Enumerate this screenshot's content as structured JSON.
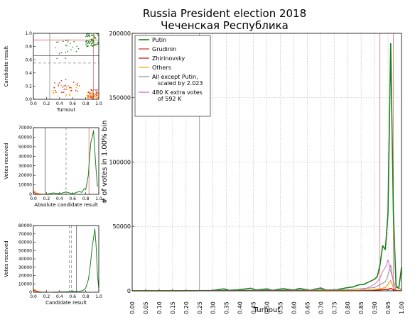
{
  "title": "Russia President election 2018",
  "subtitle": "Чеченская Республика",
  "colors": {
    "putin": "#1a7f1a",
    "grudinin": "#cc2222",
    "zhirinovsky": "#bb1111",
    "others": "#ff9900",
    "all_except": "#888888",
    "extra": "#cc66cc"
  },
  "chart_data": [
    {
      "id": "main",
      "type": "line",
      "xlabel": "Turnout",
      "ylabel": "# of votes in 1.00% bin",
      "xlim": [
        0,
        1
      ],
      "ylim": [
        0,
        200000
      ],
      "x_ticks": [
        "0.00",
        "0.05",
        "0.10",
        "0.15",
        "0.20",
        "0.25",
        "0.30",
        "0.35",
        "0.40",
        "0.45",
        "0.50",
        "0.55",
        "0.60",
        "0.65",
        "0.70",
        "0.75",
        "0.80",
        "0.85",
        "0.90",
        "0.95",
        "1.00"
      ],
      "y_ticks": [
        {
          "v": 0,
          "label": "0"
        },
        {
          "v": 50000,
          "label": "50000"
        },
        {
          "v": 100000,
          "label": "100000"
        },
        {
          "v": 150000,
          "label": "150000"
        },
        {
          "v": 200000,
          "label": "200000"
        }
      ],
      "vlines": [
        {
          "x": 0.25,
          "color": "#888888"
        },
        {
          "x": 0.92,
          "color": "#ee6666"
        },
        {
          "x": 0.97,
          "color": "#ee6666"
        }
      ],
      "grid": true,
      "legend": "top-left",
      "series": [
        {
          "name": "Putin",
          "color": "#1a7f1a",
          "width": 1.6,
          "x": [
            0.0,
            0.1,
            0.2,
            0.3,
            0.34,
            0.36,
            0.4,
            0.44,
            0.46,
            0.5,
            0.52,
            0.56,
            0.6,
            0.62,
            0.66,
            0.7,
            0.72,
            0.76,
            0.8,
            0.82,
            0.84,
            0.86,
            0.88,
            0.9,
            0.91,
            0.92,
            0.93,
            0.94,
            0.95,
            0.96,
            0.97,
            0.98,
            0.99,
            1.0
          ],
          "values": [
            0,
            0,
            0,
            300,
            1500,
            400,
            900,
            2000,
            600,
            1500,
            400,
            1600,
            500,
            1800,
            400,
            2200,
            600,
            900,
            2500,
            3000,
            4500,
            5000,
            7000,
            9000,
            11000,
            20000,
            35000,
            32000,
            60000,
            192000,
            60000,
            3000,
            2000,
            18000
          ]
        },
        {
          "name": "Grudinin",
          "color": "#cc2222",
          "width": 1,
          "x": [
            0.0,
            0.2,
            0.4,
            0.8,
            0.9,
            0.95,
            0.96,
            0.97,
            1.0
          ],
          "values": [
            0,
            0,
            100,
            200,
            500,
            1200,
            2000,
            800,
            200
          ]
        },
        {
          "name": "Zhirinovsky",
          "color": "#bb1111",
          "width": 1,
          "x": [
            0.0,
            0.2,
            0.4,
            0.8,
            0.9,
            0.95,
            0.96,
            0.97,
            1.0
          ],
          "values": [
            0,
            0,
            80,
            150,
            400,
            1000,
            1600,
            600,
            100
          ]
        },
        {
          "name": "Others",
          "color": "#ff9900",
          "width": 1.2,
          "x": [
            0.0,
            0.2,
            0.4,
            0.8,
            0.9,
            0.94,
            0.95,
            0.96,
            0.97,
            0.98,
            1.0
          ],
          "values": [
            0,
            0,
            150,
            300,
            800,
            2500,
            5000,
            8000,
            2500,
            600,
            300
          ]
        },
        {
          "name": "All except Putin,\nscaled by 2.023",
          "color": "#888888",
          "width": 0.9,
          "x": [
            0.0,
            0.3,
            0.5,
            0.8,
            0.9,
            0.94,
            0.95,
            0.96,
            0.97,
            1.0
          ],
          "values": [
            0,
            300,
            500,
            800,
            2500,
            7000,
            12000,
            20000,
            6000,
            800
          ]
        },
        {
          "name": "480 K extra votes\nof 592 K",
          "color": "#cc66cc",
          "width": 0.9,
          "x": [
            0.85,
            0.88,
            0.9,
            0.91,
            0.92,
            0.93,
            0.94,
            0.95,
            0.96,
            0.97,
            0.98
          ],
          "values": [
            0,
            3000,
            5000,
            7000,
            10000,
            15000,
            18000,
            24000,
            15000,
            8000,
            0
          ]
        }
      ]
    },
    {
      "id": "small1",
      "type": "scatter",
      "xlabel": "Turnout",
      "ylabel": "Candidate result",
      "xlim": [
        0,
        1
      ],
      "ylim": [
        0,
        1
      ],
      "x_ticks": [
        "0.0",
        "0.2",
        "0.4",
        "0.6",
        "0.8",
        "1.0"
      ],
      "y_ticks": [
        {
          "v": 0,
          "label": "0.0"
        },
        {
          "v": 0.2,
          "label": "0.2"
        },
        {
          "v": 0.4,
          "label": "0.4"
        },
        {
          "v": 0.6,
          "label": "0.6"
        },
        {
          "v": 0.8,
          "label": "0.8"
        },
        {
          "v": 1,
          "label": "1.0"
        }
      ],
      "hlines": [
        {
          "y": 0.9,
          "color": "#ee6666",
          "dash": ""
        },
        {
          "y": 0.55,
          "color": "#888888",
          "dash": "4,3"
        },
        {
          "y": 0.66,
          "color": "#555555",
          "dash": ""
        }
      ],
      "vlines": [
        {
          "x": 0.25,
          "color": "#888888"
        },
        {
          "x": 0.92,
          "color": "#ee6666"
        }
      ]
    },
    {
      "id": "small2",
      "type": "line",
      "xlabel": "Absolute candidate result",
      "ylabel": "Votes received",
      "xlim": [
        0,
        1
      ],
      "ylim": [
        0,
        70000
      ],
      "x_ticks": [
        "0.0",
        "0.2",
        "0.4",
        "0.6",
        "0.8",
        "1.0"
      ],
      "y_ticks": [
        {
          "v": 0,
          "label": "0"
        },
        {
          "v": 10000,
          "label": "10000"
        },
        {
          "v": 20000,
          "label": "20000"
        },
        {
          "v": 30000,
          "label": "30000"
        },
        {
          "v": 40000,
          "label": "40000"
        },
        {
          "v": 50000,
          "label": "50000"
        },
        {
          "v": 60000,
          "label": "60000"
        },
        {
          "v": 70000,
          "label": "70000"
        }
      ],
      "vlines": [
        {
          "x": 0.18,
          "color": "#555555",
          "dash": ""
        },
        {
          "x": 0.5,
          "color": "#888888",
          "dash": "4,3"
        },
        {
          "x": 0.85,
          "color": "#ee6666",
          "dash": ""
        }
      ],
      "series": [
        {
          "name": "Putin",
          "color": "#1a7f1a",
          "width": 1,
          "x": [
            0.2,
            0.3,
            0.4,
            0.5,
            0.6,
            0.7,
            0.74,
            0.78,
            0.8,
            0.82,
            0.84,
            0.86,
            0.88,
            0.9,
            0.92,
            0.94,
            0.96,
            0.98
          ],
          "values": [
            0,
            1500,
            600,
            2500,
            500,
            3000,
            2000,
            6000,
            5000,
            12000,
            20000,
            40000,
            55000,
            60000,
            67000,
            45000,
            25000,
            8000
          ]
        },
        {
          "name": "Others",
          "color": "#ff9900",
          "width": 1.2,
          "x": [
            0.0,
            0.02,
            0.04,
            0.06,
            0.1,
            0.15,
            0.2
          ],
          "values": [
            4000,
            3000,
            2000,
            800,
            300,
            100,
            0
          ]
        },
        {
          "name": "Grudinin",
          "color": "#cc2222",
          "width": 1,
          "x": [
            0.0,
            0.02,
            0.04,
            0.08,
            0.12
          ],
          "values": [
            2500,
            1500,
            600,
            200,
            0
          ]
        }
      ]
    },
    {
      "id": "small3",
      "type": "line",
      "xlabel": "Candidate result",
      "ylabel": "Votes received",
      "xlim": [
        0,
        1
      ],
      "ylim": [
        0,
        80000
      ],
      "x_ticks": [
        "0.0",
        "0.2",
        "0.4",
        "0.6",
        "0.8",
        "1.0"
      ],
      "y_ticks": [
        {
          "v": 0,
          "label": "0"
        },
        {
          "v": 10000,
          "label": "10000"
        },
        {
          "v": 20000,
          "label": "20000"
        },
        {
          "v": 30000,
          "label": "30000"
        },
        {
          "v": 40000,
          "label": "40000"
        },
        {
          "v": 50000,
          "label": "50000"
        },
        {
          "v": 60000,
          "label": "60000"
        },
        {
          "v": 70000,
          "label": "70000"
        },
        {
          "v": 80000,
          "label": "80000"
        }
      ],
      "vlines": [
        {
          "x": 0.55,
          "color": "#888888",
          "dash": "4,3"
        },
        {
          "x": 0.58,
          "color": "#888888",
          "dash": "4,3"
        },
        {
          "x": 0.66,
          "color": "#555555",
          "dash": ""
        }
      ],
      "series": [
        {
          "name": "Putin",
          "color": "#1a7f1a",
          "width": 1,
          "x": [
            0.3,
            0.5,
            0.6,
            0.7,
            0.76,
            0.8,
            0.84,
            0.86,
            0.88,
            0.9,
            0.92,
            0.94,
            0.96,
            0.98,
            1.0
          ],
          "values": [
            0,
            400,
            800,
            1000,
            2000,
            5000,
            15000,
            25000,
            40000,
            55000,
            65000,
            76000,
            55000,
            20000,
            5000
          ]
        },
        {
          "name": "Others",
          "color": "#ff9900",
          "width": 1.2,
          "x": [
            0.0,
            0.02,
            0.05,
            0.08,
            0.12,
            0.2
          ],
          "values": [
            4000,
            3000,
            1500,
            600,
            200,
            0
          ]
        },
        {
          "name": "Grudinin",
          "color": "#cc2222",
          "width": 1,
          "x": [
            0.0,
            0.03,
            0.06,
            0.12
          ],
          "values": [
            2500,
            1500,
            500,
            0
          ]
        }
      ]
    }
  ]
}
